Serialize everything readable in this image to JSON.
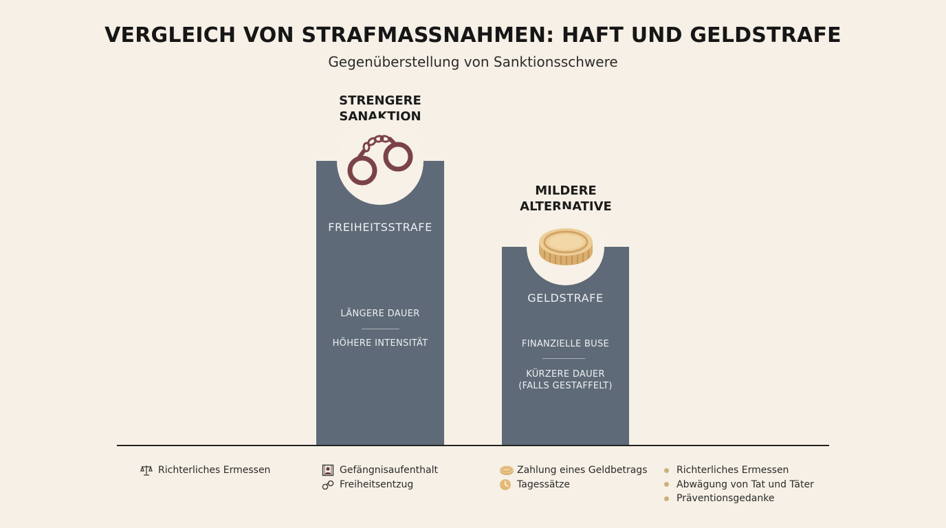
{
  "header": {
    "title": "VERGLEICH VON STRAFMASSNAHMEN: HAFT UND GELDSTRAFE",
    "subtitle": "Gegenüberstellung von Sanktionsschwere"
  },
  "left_block": {
    "heading_line1": "STRENGERE",
    "heading_line2": "SANAKTION",
    "icon": "handcuffs-icon",
    "label": "FREIHEITSSTRAFE",
    "detail1": "LÄNGERE DAUER",
    "detail2": "HÖHERE INTENSITÄT"
  },
  "right_block": {
    "heading_line1": "MILDERE",
    "heading_line2": "ALTERNATIVE",
    "icon": "coin-icon",
    "label": "GELDSTRAFE",
    "detail1": "FINANZIELLE BUSE",
    "detail2_line1": "KÜRZERE DAUER",
    "detail2_line2": "(FALLS GESTAFFELT)"
  },
  "legend": {
    "col1": [
      {
        "icon": "scales-icon",
        "text": "Richterliches Ermessen"
      }
    ],
    "col2": [
      {
        "icon": "prison-icon",
        "text": "Gefängnisaufenthalt"
      },
      {
        "icon": "handcuffs-icon",
        "text": "Freiheitsentzug"
      }
    ],
    "col3": [
      {
        "icon": "coin-icon",
        "text": "Zahlung eines Geldbetrags"
      },
      {
        "icon": "clock-icon",
        "text": "Tagessätze"
      }
    ],
    "col4": [
      {
        "icon": "dot-icon",
        "text": "Richterliches Ermessen"
      },
      {
        "icon": "dot-icon",
        "text": "Abwägung von Tat und Täter"
      },
      {
        "icon": "dot-icon",
        "text": "Präventionsgedanke"
      }
    ]
  },
  "colors": {
    "background": "#f6f0e6",
    "bar": "#5e6a77",
    "handcuffs": "#7a4347",
    "coin": "#e6c28e",
    "dot": "#c9b27a"
  }
}
